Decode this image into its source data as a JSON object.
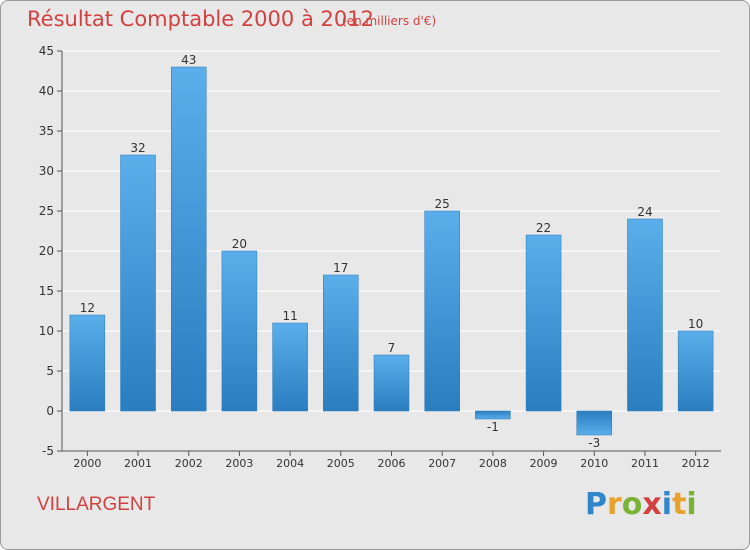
{
  "header": {
    "title": "Résultat Comptable 2000 à 2012",
    "subtitle": "(en milliers d'€)"
  },
  "footer": {
    "commune": "VILLARGENT",
    "logo_text": "Proxiti",
    "logo_letters": [
      "P",
      "r",
      "o",
      "x",
      "i",
      "t",
      "i"
    ],
    "logo_colors": [
      "#2f86c8",
      "#e8a22a",
      "#79b335",
      "#d2413f",
      "#2f86c8",
      "#e8a22a",
      "#79b335"
    ]
  },
  "colors": {
    "title": "#d2413f",
    "bar": "#3a92d8",
    "background": "#e8e8e8",
    "grid": "#ffffff"
  },
  "chart_data": {
    "type": "bar",
    "categories": [
      "2000",
      "2001",
      "2002",
      "2003",
      "2004",
      "2005",
      "2006",
      "2007",
      "2008",
      "2009",
      "2010",
      "2011",
      "2012"
    ],
    "values": [
      12,
      32,
      43,
      20,
      11,
      17,
      7,
      25,
      -1,
      22,
      -3,
      24,
      10
    ],
    "title": "Résultat Comptable 2000 à 2012",
    "xlabel": "",
    "ylabel": "",
    "ylim": [
      -5,
      45
    ],
    "yticks": [
      -5,
      0,
      5,
      10,
      15,
      20,
      25,
      30,
      35,
      40,
      45
    ],
    "grid": true,
    "legend": "none"
  }
}
